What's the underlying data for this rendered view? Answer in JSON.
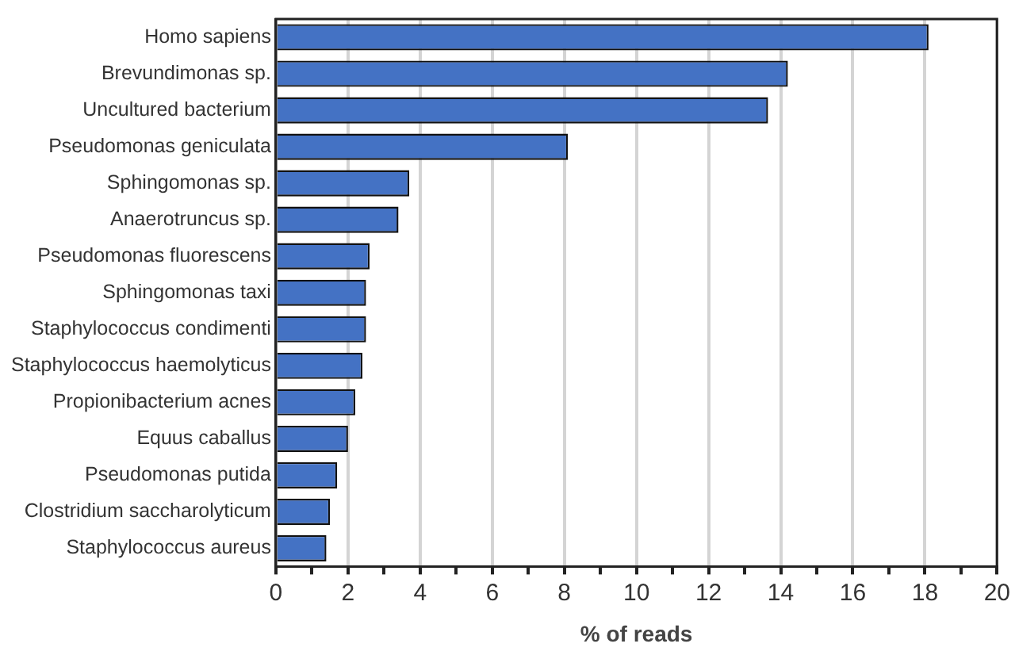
{
  "chart_data": {
    "type": "bar",
    "orientation": "horizontal",
    "xlabel": "% of reads",
    "categories": [
      "Homo sapiens",
      "Brevundimonas sp.",
      "Uncultured bacterium",
      "Pseudomonas geniculata",
      "Sphingomonas sp.",
      "Anaerotruncus sp.",
      "Pseudomonas fluorescens",
      "Sphingomonas taxi",
      "Staphylococcus condimenti",
      "Staphylococcus haemolyticus",
      "Propionibacterium acnes",
      "Equus caballus",
      "Pseudomonas putida",
      "Clostridium saccharolyticum",
      "Staphylococcus aureus"
    ],
    "values": [
      18.1,
      14.2,
      13.65,
      8.1,
      3.7,
      3.4,
      2.6,
      2.5,
      2.5,
      2.4,
      2.2,
      2.0,
      1.7,
      1.5,
      1.4
    ],
    "color": "#4472c4",
    "xlim": [
      0,
      20
    ],
    "xticks": [
      0,
      {
        "value": 1,
        "label": null
      },
      2,
      {
        "value": 3,
        "label": null
      },
      4,
      {
        "value": 5,
        "label": null
      },
      6,
      {
        "value": 7,
        "label": null
      },
      8,
      {
        "value": 9,
        "label": null
      },
      10,
      {
        "value": 11,
        "label": null
      },
      12,
      {
        "value": 13,
        "label": null
      },
      14,
      {
        "value": 15,
        "label": null
      },
      16,
      {
        "value": 17,
        "label": null
      },
      18,
      {
        "value": 19,
        "label": null
      },
      20
    ],
    "grid": "x",
    "legend": false
  }
}
